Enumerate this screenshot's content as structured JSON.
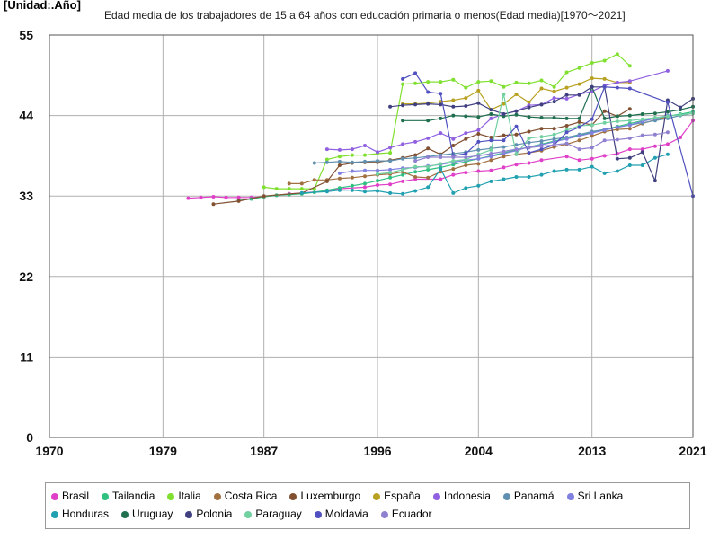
{
  "chart_data": {
    "type": "line",
    "title": "Edad media de los trabajadores de 15 a 64 años con educación primaria o menos(Edad media)[1970〜2021]",
    "unit_label": "[Unidad:.Año]",
    "xlabel": "",
    "ylabel": "",
    "xlim": [
      1970,
      2021
    ],
    "ylim": [
      0,
      55
    ],
    "x_ticks": [
      "1970",
      "1979",
      "1987",
      "1996",
      "2004",
      "2013",
      "2021"
    ],
    "y_ticks": [
      "0",
      "11",
      "22",
      "33",
      "44",
      "55"
    ],
    "grid": true,
    "legend_position": "bottom",
    "series": [
      {
        "name": "Brasil",
        "color": "#e040c8",
        "x": [
          1981,
          1982,
          1983,
          1984,
          1985,
          1986,
          1987,
          1988,
          1989,
          1990,
          1992,
          1993,
          1995,
          1996,
          1997,
          1998,
          1999,
          2001,
          2002,
          2003,
          2004,
          2005,
          2006,
          2007,
          2008,
          2009,
          2011,
          2012,
          2013,
          2014,
          2015,
          2016,
          2017,
          2018,
          2019,
          2020,
          2021
        ],
        "y": [
          32.7,
          32.8,
          32.9,
          32.8,
          32.8,
          32.8,
          32.9,
          33.1,
          33.3,
          33.4,
          33.7,
          34.0,
          34.2,
          34.5,
          34.6,
          35.0,
          35.3,
          35.3,
          35.9,
          36.2,
          36.4,
          36.5,
          36.9,
          37.3,
          37.5,
          37.9,
          38.4,
          37.9,
          38.1,
          38.5,
          38.8,
          39.4,
          39.4,
          39.8,
          40.1,
          41.0,
          43.3
        ]
      },
      {
        "name": "Tailandia",
        "color": "#30c080",
        "x": [
          1985,
          1986,
          1987,
          1988,
          1989,
          1990,
          1991,
          1992,
          1993,
          1994,
          1995,
          1996,
          1997,
          1998,
          1999,
          2000,
          2001,
          2002,
          2003,
          2004,
          2005,
          2006,
          2007,
          2008,
          2009,
          2010,
          2011,
          2012,
          2013,
          2014,
          2015,
          2016,
          2017,
          2018,
          2019,
          2020,
          2021
        ],
        "y": [
          32.4,
          32.6,
          32.9,
          33.1,
          33.2,
          33.3,
          33.5,
          33.8,
          34.1,
          34.4,
          34.7,
          35.1,
          35.5,
          35.9,
          36.3,
          36.6,
          36.9,
          37.3,
          37.7,
          38.1,
          38.5,
          38.9,
          39.3,
          39.7,
          40.1,
          40.5,
          40.9,
          41.3,
          41.7,
          42.1,
          42.5,
          42.9,
          43.3,
          43.6,
          43.9,
          44.2,
          44.5
        ]
      },
      {
        "name": "Italia",
        "color": "#80e030",
        "x": [
          1987,
          1988,
          1989,
          1990,
          1991,
          1992,
          1993,
          1994,
          1995,
          1996,
          1997,
          1998,
          1999,
          2000,
          2001,
          2002,
          2003,
          2004,
          2005,
          2006,
          2007,
          2008,
          2009,
          2010,
          2011,
          2012,
          2013,
          2014,
          2015,
          2016
        ],
        "y": [
          34.2,
          34.0,
          34.0,
          34.0,
          34.0,
          38.0,
          38.4,
          38.6,
          38.6,
          38.8,
          38.9,
          48.3,
          48.4,
          48.6,
          48.6,
          48.9,
          47.8,
          48.6,
          48.7,
          47.9,
          48.5,
          48.4,
          48.8,
          47.9,
          49.9,
          50.5,
          51.2,
          51.5,
          52.4,
          50.8
        ]
      },
      {
        "name": "Costa Rica",
        "color": "#a07040",
        "x": [
          1989,
          1990,
          1991,
          1992,
          1993,
          1994,
          1995,
          1996,
          1997,
          1998,
          1999,
          2000,
          2001,
          2002,
          2003,
          2004,
          2005,
          2006,
          2007,
          2008,
          2009,
          2010,
          2011,
          2012,
          2013,
          2014,
          2015,
          2016,
          2017,
          2018,
          2019
        ],
        "y": [
          34.7,
          34.7,
          35.2,
          35.2,
          35.4,
          35.5,
          35.7,
          35.9,
          36.0,
          36.3,
          35.6,
          35.5,
          36.3,
          36.7,
          37.2,
          37.4,
          37.9,
          38.4,
          38.7,
          38.9,
          39.2,
          39.7,
          40.1,
          40.6,
          41.2,
          41.8,
          42.1,
          42.2,
          42.9,
          43.4,
          43.8
        ]
      },
      {
        "name": "Luxemburgo",
        "color": "#805030",
        "x": [
          1983,
          1985,
          1987,
          1990,
          1992,
          1993,
          1994,
          1995,
          1996,
          1997,
          1998,
          1999,
          2000,
          2001,
          2002,
          2003,
          2004,
          2005,
          2006,
          2007,
          2008,
          2009,
          2010,
          2011,
          2012,
          2013,
          2014,
          2015,
          2016
        ],
        "y": [
          31.9,
          32.3,
          33.0,
          33.4,
          35.0,
          37.2,
          37.5,
          37.6,
          37.6,
          37.9,
          38.2,
          38.6,
          39.5,
          38.7,
          39.9,
          40.8,
          41.5,
          41.0,
          41.3,
          41.4,
          41.8,
          42.2,
          42.2,
          42.6,
          43.1,
          42.7,
          44.6,
          43.9,
          44.9
        ]
      },
      {
        "name": "España",
        "color": "#b8a020",
        "x": [
          1998,
          1999,
          2000,
          2001,
          2002,
          2003,
          2004,
          2005,
          2006,
          2007,
          2008,
          2009,
          2010,
          2011,
          2012,
          2013,
          2014,
          2015,
          2016
        ],
        "y": [
          45.6,
          45.6,
          45.7,
          45.9,
          46.1,
          46.4,
          47.4,
          44.8,
          45.6,
          46.9,
          45.8,
          47.7,
          47.3,
          47.8,
          48.3,
          49.1,
          49.0,
          48.5,
          48.5
        ]
      },
      {
        "name": "Indonesia",
        "color": "#9060e0",
        "x": [
          1992,
          1993,
          1994,
          1995,
          1996,
          1997,
          1998,
          1999,
          2000,
          2001,
          2002,
          2003,
          2004,
          2005,
          2006,
          2007,
          2008,
          2009,
          2010,
          2011,
          2012,
          2013,
          2014,
          2015,
          2016,
          2019
        ],
        "y": [
          39.4,
          39.3,
          39.4,
          39.9,
          39.0,
          39.6,
          40.1,
          40.4,
          40.9,
          41.6,
          40.8,
          41.6,
          42.0,
          43.6,
          44.2,
          44.6,
          45.4,
          45.5,
          46.4,
          46.3,
          46.9,
          47.3,
          48.1,
          48.5,
          48.7,
          50.1
        ]
      },
      {
        "name": "Panamá",
        "color": "#6090b0",
        "x": [
          1991,
          1992,
          1993,
          1994,
          1995,
          1996,
          1997,
          1998,
          1999,
          2000,
          2001,
          2002,
          2003,
          2004,
          2005,
          2006,
          2007,
          2008,
          2009,
          2010,
          2011,
          2012,
          2013,
          2014,
          2015,
          2016,
          2017,
          2018,
          2019,
          2020,
          2021
        ],
        "y": [
          37.5,
          37.6,
          37.7,
          37.6,
          37.7,
          37.8,
          37.8,
          38.1,
          38.2,
          38.4,
          38.6,
          38.8,
          39.0,
          39.3,
          39.5,
          39.7,
          40.0,
          40.3,
          40.5,
          40.8,
          41.0,
          41.4,
          41.8,
          42.1,
          42.4,
          42.7,
          43.0,
          43.3,
          43.6,
          44.0,
          44.3
        ]
      },
      {
        "name": "Sri Lanka",
        "color": "#8080e0",
        "x": [
          1993,
          1994,
          1995,
          1996,
          1997,
          1998,
          1999,
          2000,
          2001,
          2002,
          2003,
          2004,
          2005,
          2006,
          2007,
          2008,
          2009,
          2010,
          2011,
          2012,
          2013,
          2014,
          2015,
          2016,
          2017,
          2018,
          2019
        ],
        "y": [
          36.1,
          36.4,
          36.5,
          36.5,
          36.6,
          36.8,
          36.9,
          37.1,
          37.3,
          37.6,
          37.9,
          38.1,
          38.4,
          38.8,
          39.2,
          39.7,
          40.0,
          40.4,
          40.8,
          41.2,
          41.6,
          42.0,
          42.4,
          42.7,
          43.2,
          43.6,
          44.0
        ]
      },
      {
        "name": "Honduras",
        "color": "#20a0b0",
        "x": [
          1990,
          1992,
          1993,
          1994,
          1995,
          1996,
          1997,
          1998,
          1999,
          2000,
          2001,
          2002,
          2003,
          2004,
          2005,
          2006,
          2007,
          2008,
          2009,
          2010,
          2011,
          2012,
          2013,
          2014,
          2015,
          2016,
          2017,
          2018,
          2019
        ],
        "y": [
          33.4,
          33.6,
          33.8,
          33.8,
          33.6,
          33.7,
          33.4,
          33.3,
          33.7,
          34.2,
          36.7,
          33.4,
          34.1,
          34.4,
          35.0,
          35.3,
          35.6,
          35.6,
          35.9,
          36.4,
          36.6,
          36.6,
          37.0,
          36.1,
          36.4,
          37.2,
          37.2,
          38.2,
          38.7
        ]
      },
      {
        "name": "Uruguay",
        "color": "#207050",
        "x": [
          1998,
          2000,
          2001,
          2002,
          2003,
          2004,
          2005,
          2006,
          2007,
          2008,
          2009,
          2010,
          2011,
          2012,
          2013,
          2014,
          2015,
          2016,
          2017,
          2018,
          2019,
          2020,
          2021
        ],
        "y": [
          43.3,
          43.3,
          43.6,
          44.0,
          43.9,
          43.8,
          44.2,
          43.9,
          44.1,
          43.8,
          43.7,
          43.7,
          43.6,
          43.6,
          47.9,
          43.6,
          43.9,
          44.0,
          44.2,
          44.3,
          44.5,
          44.8,
          45.2
        ]
      },
      {
        "name": "Polonia",
        "color": "#404080",
        "x": [
          1997,
          1998,
          1999,
          2000,
          2001,
          2002,
          2003,
          2004,
          2005,
          2006,
          2007,
          2008,
          2009,
          2010,
          2011,
          2012,
          2013,
          2014,
          2015,
          2016,
          2017,
          2018,
          2019,
          2020,
          2021
        ],
        "y": [
          45.2,
          45.4,
          45.5,
          45.6,
          45.5,
          45.2,
          45.3,
          45.7,
          44.8,
          44.2,
          44.6,
          45.1,
          45.5,
          45.9,
          46.8,
          46.8,
          47.9,
          47.9,
          38.1,
          38.2,
          39.0,
          35.1,
          46.1,
          45.1,
          46.3
        ]
      },
      {
        "name": "Paraguay",
        "color": "#70d0a0",
        "x": [
          1996,
          1997,
          1998,
          1999,
          2000,
          2001,
          2002,
          2003,
          2004,
          2005,
          2006,
          2007,
          2008,
          2009,
          2010,
          2011,
          2012,
          2013,
          2014,
          2015,
          2016,
          2017,
          2018,
          2019,
          2020,
          2021
        ],
        "y": [
          36.0,
          36.2,
          36.6,
          37.0,
          37.0,
          37.4,
          37.8,
          38.0,
          38.7,
          39.3,
          46.9,
          38.7,
          40.9,
          41.1,
          41.4,
          42.0,
          42.6,
          42.7,
          43.0,
          43.2,
          43.3,
          43.5,
          43.7,
          43.9,
          44.1,
          44.3
        ]
      },
      {
        "name": "Moldavia",
        "color": "#5050c0",
        "x": [
          1998,
          1999,
          2000,
          2001,
          2002,
          2003,
          2004,
          2005,
          2006,
          2007,
          2008,
          2009,
          2010,
          2011,
          2012,
          2013,
          2014,
          2015,
          2016,
          2019,
          2021
        ],
        "y": [
          49.0,
          49.8,
          47.2,
          47.0,
          38.5,
          38.8,
          40.4,
          40.6,
          40.6,
          42.5,
          38.9,
          39.4,
          40.0,
          41.7,
          42.4,
          43.5,
          47.9,
          47.8,
          47.7,
          45.8,
          33.0
        ]
      },
      {
        "name": "Ecuador",
        "color": "#9080d0",
        "x": [
          1999,
          2000,
          2001,
          2002,
          2003,
          2004,
          2005,
          2006,
          2007,
          2008,
          2009,
          2010,
          2011,
          2012,
          2013,
          2014,
          2015,
          2016,
          2017,
          2018,
          2019
        ],
        "y": [
          37.8,
          38.3,
          38.3,
          38.3,
          38.3,
          38.5,
          38.8,
          39.1,
          39.4,
          39.6,
          39.8,
          40.0,
          40.2,
          39.4,
          39.6,
          40.6,
          40.7,
          40.9,
          41.3,
          41.4,
          41.7
        ]
      }
    ]
  }
}
